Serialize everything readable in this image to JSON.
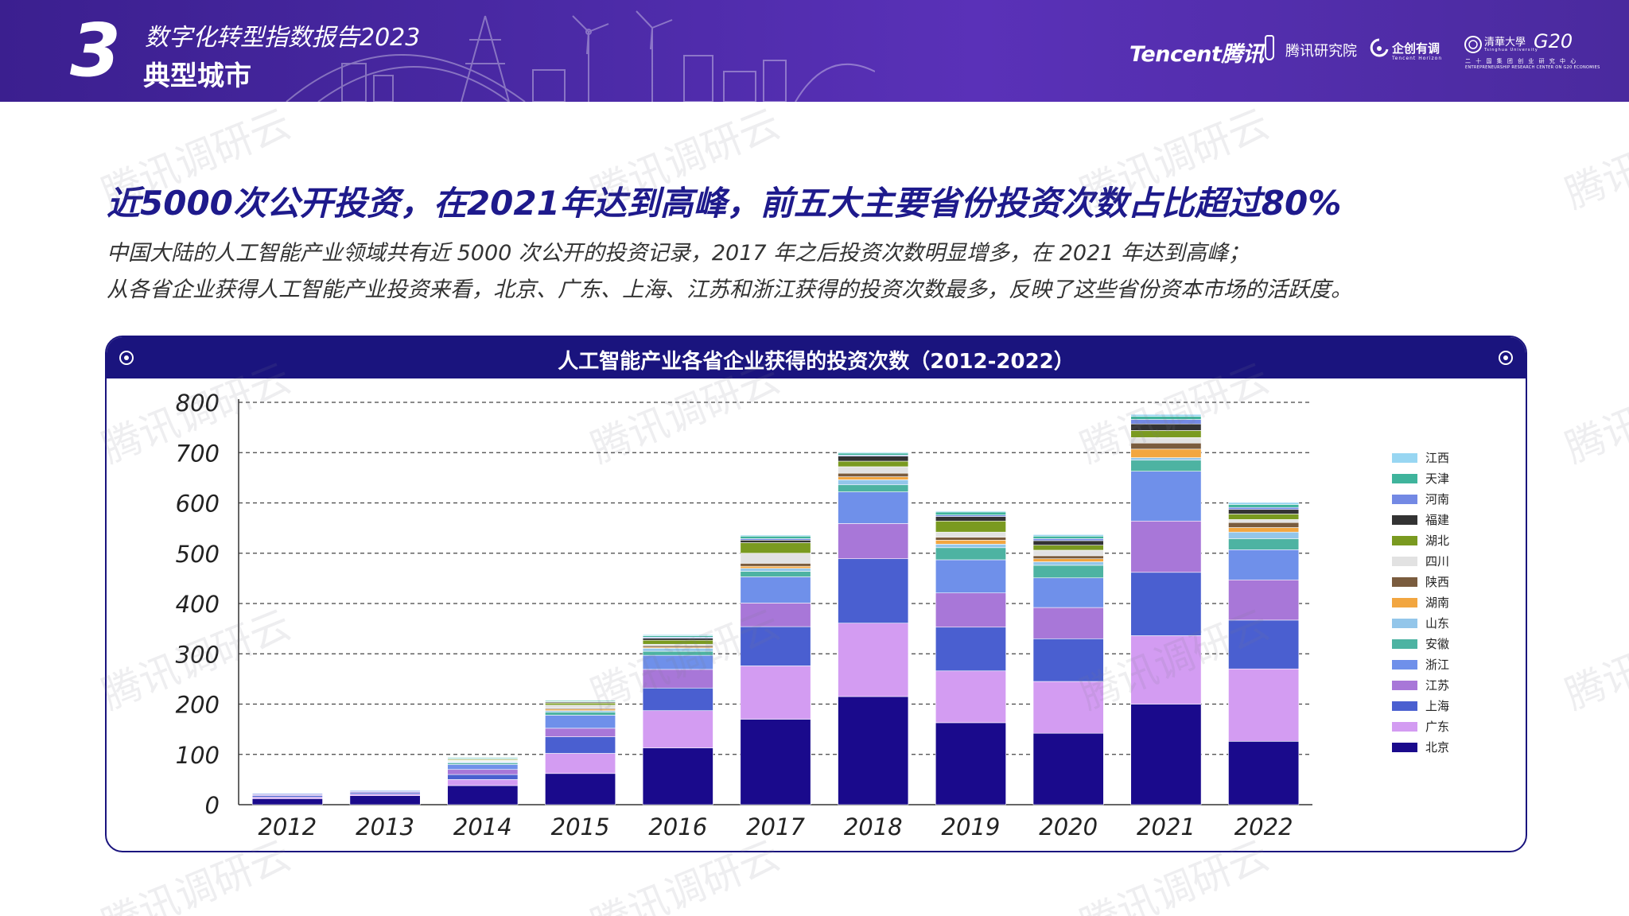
{
  "header": {
    "section_number": "3",
    "report_title": "数字化转型指数报告2023",
    "section_title": "典型城市",
    "logos": {
      "tencent": "Tencent腾讯",
      "research": "腾讯研究院",
      "qichuang": "企创有调",
      "qichuang_sub": "Tencent Horizon",
      "tsinghua": "清華大學",
      "tsinghua_sub": "Tsinghua University",
      "g20": "G20",
      "g20_sub": "二 十 国 集 团 创 业 研 究 中 心",
      "g20_en": "ENTREPRENEURSHIP RESEARCH CENTER ON G20 ECONOMIES"
    }
  },
  "headline": "近5000次公开投资，在2021年达到高峰，前五大主要省份投资次数占比超过80%",
  "description": [
    "中国大陆的人工智能产业领域共有近 5000 次公开的投资记录，2017 年之后投资次数明显增多，在 2021 年达到高峰；",
    "从各省企业获得人工智能产业投资来看，北京、广东、上海、江苏和浙江获得的投资次数最多，反映了这些省份资本市场的活跃度。"
  ],
  "watermark": "腾讯调研云",
  "chart_data": {
    "type": "bar",
    "stacked": true,
    "title": "人工智能产业各省企业获得的投资次数（2012-2022）",
    "xlabel": "",
    "ylabel": "",
    "ylim": [
      0,
      800
    ],
    "yticks": [
      0,
      100,
      200,
      300,
      400,
      500,
      600,
      700,
      800
    ],
    "grid": true,
    "legend_position": "right",
    "categories": [
      "2012",
      "2013",
      "2014",
      "2015",
      "2016",
      "2017",
      "2018",
      "2019",
      "2020",
      "2021",
      "2022"
    ],
    "series": [
      {
        "name": "北京",
        "color": "#1a0a8c",
        "values": [
          12,
          18,
          38,
          62,
          113,
          170,
          215,
          163,
          142,
          200,
          126
        ]
      },
      {
        "name": "广东",
        "color": "#d39cf2",
        "values": [
          3,
          3,
          12,
          40,
          74,
          106,
          146,
          103,
          103,
          136,
          144
        ]
      },
      {
        "name": "上海",
        "color": "#4a5fd0",
        "values": [
          3,
          3,
          10,
          33,
          45,
          78,
          128,
          87,
          85,
          126,
          97
        ]
      },
      {
        "name": "江苏",
        "color": "#a877d8",
        "values": [
          2,
          2,
          10,
          17,
          37,
          47,
          70,
          68,
          62,
          102,
          80
        ]
      },
      {
        "name": "浙江",
        "color": "#6f90ea",
        "values": [
          2,
          2,
          10,
          26,
          28,
          52,
          63,
          66,
          59,
          99,
          60
        ]
      },
      {
        "name": "安徽",
        "color": "#4db3a2",
        "values": [
          0,
          0,
          3,
          6,
          8,
          11,
          14,
          24,
          25,
          22,
          22
        ]
      },
      {
        "name": "山东",
        "color": "#93c6ea",
        "values": [
          0,
          0,
          2,
          3,
          6,
          6,
          10,
          7,
          7,
          5,
          13
        ]
      },
      {
        "name": "湖南",
        "color": "#f2a640",
        "values": [
          0,
          0,
          1,
          3,
          2,
          4,
          6,
          8,
          6,
          17,
          9
        ]
      },
      {
        "name": "陕西",
        "color": "#7a5c3e",
        "values": [
          0,
          0,
          1,
          2,
          3,
          6,
          7,
          6,
          6,
          12,
          10
        ]
      },
      {
        "name": "四川",
        "color": "#e2e2e2",
        "values": [
          0,
          0,
          1,
          6,
          3,
          20,
          13,
          10,
          11,
          11,
          6
        ]
      },
      {
        "name": "湖北",
        "color": "#7a9a20",
        "values": [
          0,
          0,
          2,
          4,
          8,
          21,
          11,
          22,
          10,
          14,
          11
        ]
      },
      {
        "name": "福建",
        "color": "#333333",
        "values": [
          0,
          0,
          1,
          2,
          4,
          5,
          10,
          9,
          9,
          13,
          9
        ]
      },
      {
        "name": "河南",
        "color": "#7389e4",
        "values": [
          0,
          0,
          1,
          1,
          2,
          3,
          2,
          3,
          4,
          9,
          4
        ]
      },
      {
        "name": "天津",
        "color": "#3fb49c",
        "values": [
          0,
          0,
          2,
          2,
          3,
          5,
          4,
          6,
          5,
          6,
          6
        ]
      },
      {
        "name": "江西",
        "color": "#98d6f2",
        "values": [
          0,
          0,
          1,
          1,
          2,
          2,
          2,
          2,
          3,
          4,
          4
        ]
      }
    ]
  }
}
